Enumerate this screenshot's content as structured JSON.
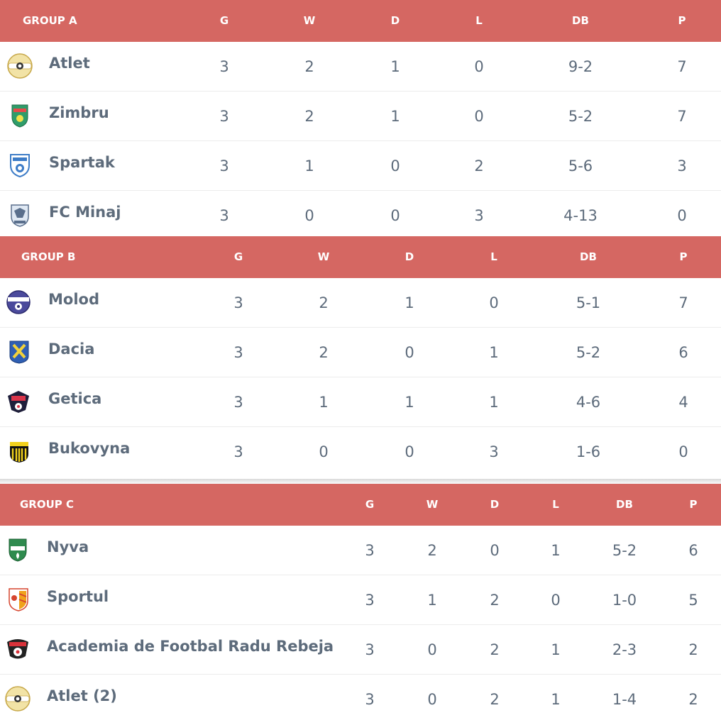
{
  "columns": [
    "G",
    "W",
    "D",
    "L",
    "DB",
    "P"
  ],
  "colors": {
    "header_bg": "#d56762",
    "header_text": "#ffffff",
    "text": "#5d6b7b"
  },
  "groups": [
    {
      "title": "GROUP A",
      "rows": [
        {
          "team": "Atlet",
          "logo": "atlet-badge-icon",
          "g": "3",
          "w": "2",
          "d": "1",
          "l": "0",
          "db": "9-2",
          "p": "7"
        },
        {
          "team": "Zimbru",
          "logo": "zimbru-badge-icon",
          "g": "3",
          "w": "2",
          "d": "1",
          "l": "0",
          "db": "5-2",
          "p": "7"
        },
        {
          "team": "Spartak",
          "logo": "spartak-badge-icon",
          "g": "3",
          "w": "1",
          "d": "0",
          "l": "2",
          "db": "5-6",
          "p": "3"
        },
        {
          "team": "FC Minaj",
          "logo": "fc-minaj-badge-icon",
          "g": "3",
          "w": "0",
          "d": "0",
          "l": "3",
          "db": "4-13",
          "p": "0"
        }
      ]
    },
    {
      "title": "GROUP B",
      "rows": [
        {
          "team": "Molod",
          "logo": "molod-badge-icon",
          "g": "3",
          "w": "2",
          "d": "1",
          "l": "0",
          "db": "5-1",
          "p": "7"
        },
        {
          "team": "Dacia",
          "logo": "dacia-badge-icon",
          "g": "3",
          "w": "2",
          "d": "0",
          "l": "1",
          "db": "5-2",
          "p": "6"
        },
        {
          "team": "Getica",
          "logo": "getica-badge-icon",
          "g": "3",
          "w": "1",
          "d": "1",
          "l": "1",
          "db": "4-6",
          "p": "4"
        },
        {
          "team": "Bukovyna",
          "logo": "bukovyna-badge-icon",
          "g": "3",
          "w": "0",
          "d": "0",
          "l": "3",
          "db": "1-6",
          "p": "0"
        }
      ]
    },
    {
      "title": "GROUP C",
      "rows": [
        {
          "team": "Nyva",
          "logo": "nyva-badge-icon",
          "g": "3",
          "w": "2",
          "d": "0",
          "l": "1",
          "db": "5-2",
          "p": "6"
        },
        {
          "team": "Sportul",
          "logo": "sportul-badge-icon",
          "g": "3",
          "w": "1",
          "d": "2",
          "l": "0",
          "db": "1-0",
          "p": "5"
        },
        {
          "team": "Academia de Footbal Radu Rebeja",
          "logo": "academia-badge-icon",
          "g": "3",
          "w": "0",
          "d": "2",
          "l": "1",
          "db": "2-3",
          "p": "2"
        },
        {
          "team": "Atlet (2)",
          "logo": "atlet-badge-icon",
          "g": "3",
          "w": "0",
          "d": "2",
          "l": "1",
          "db": "1-4",
          "p": "2"
        }
      ]
    }
  ]
}
